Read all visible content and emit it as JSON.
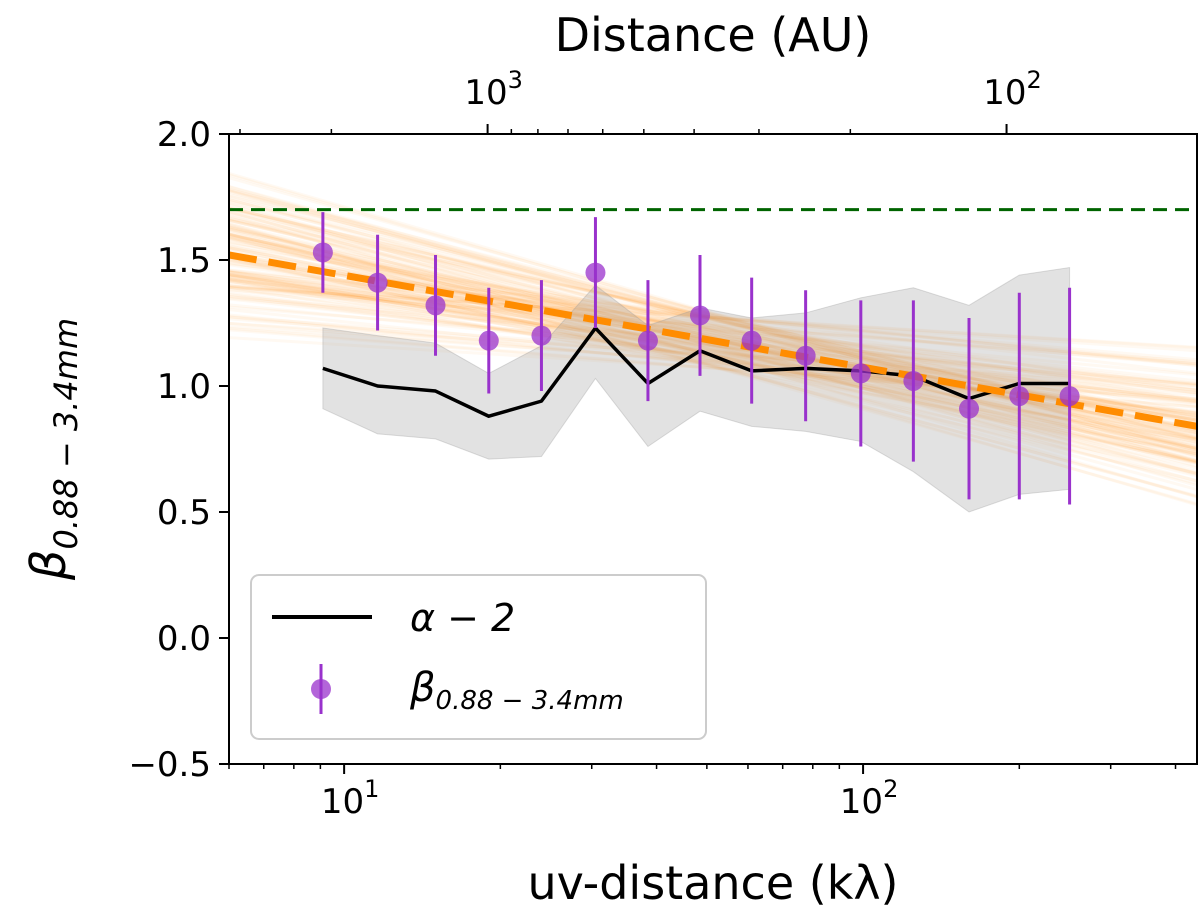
{
  "chart_data": {
    "type": "scatter",
    "xlabel": "uv-distance (kλ)",
    "ylabel_main": "β",
    "ylabel_sub": "0.88 − 3.4mm",
    "top_xlabel": "Distance (AU)",
    "xscale": "log",
    "xlim": [
      6,
      440
    ],
    "ylim": [
      -0.5,
      2.0
    ],
    "yticks": [
      -0.5,
      0.0,
      0.5,
      1.0,
      1.5,
      2.0
    ],
    "ytick_labels": [
      "−0.5",
      "0.0",
      "0.5",
      "1.0",
      "1.5",
      "2.0"
    ],
    "xtick_major": [
      {
        "value": 10,
        "base": "10",
        "exp": "1"
      },
      {
        "value": 100,
        "base": "10",
        "exp": "2"
      }
    ],
    "top_xtick_major": [
      {
        "value": 18.9,
        "base": "10",
        "exp": "3"
      },
      {
        "value": 189,
        "base": "10",
        "exp": "2"
      }
    ],
    "series": [
      {
        "name": "β_{0.88 − 3.4mm}",
        "kind": "errorbar",
        "color": "#9932CC",
        "x": [
          9.1,
          11.6,
          15.0,
          19.0,
          24.0,
          30.5,
          38.5,
          48.5,
          61.0,
          77.5,
          99.0,
          125.0,
          160.0,
          200.0,
          250.0
        ],
        "y": [
          1.53,
          1.41,
          1.32,
          1.18,
          1.2,
          1.45,
          1.18,
          1.28,
          1.18,
          1.12,
          1.05,
          1.02,
          0.91,
          0.96,
          0.96
        ],
        "yerr": [
          0.16,
          0.19,
          0.2,
          0.21,
          0.22,
          0.22,
          0.24,
          0.24,
          0.25,
          0.26,
          0.29,
          0.32,
          0.36,
          0.41,
          0.43
        ]
      },
      {
        "name": "α − 2",
        "kind": "line",
        "color": "#000000",
        "x": [
          9.1,
          11.6,
          15.0,
          19.0,
          24.0,
          30.5,
          38.5,
          48.5,
          61.0,
          77.5,
          99.0,
          125.0,
          160.0,
          200.0,
          250.0
        ],
        "y": [
          1.07,
          1.0,
          0.98,
          0.88,
          0.94,
          1.23,
          1.01,
          1.14,
          1.06,
          1.07,
          1.06,
          1.04,
          0.95,
          1.01,
          1.01
        ],
        "band_low": [
          0.91,
          0.81,
          0.79,
          0.71,
          0.72,
          1.03,
          0.76,
          0.9,
          0.84,
          0.82,
          0.78,
          0.66,
          0.5,
          0.57,
          0.59
        ],
        "band_high": [
          1.23,
          1.2,
          1.17,
          1.05,
          1.16,
          1.4,
          1.24,
          1.31,
          1.27,
          1.29,
          1.35,
          1.39,
          1.32,
          1.44,
          1.47
        ]
      },
      {
        "name": "fit",
        "kind": "dashed-line",
        "color": "#FF8C00",
        "x": [
          6,
          440
        ],
        "y": [
          1.52,
          0.84
        ]
      },
      {
        "name": "reference",
        "kind": "dashed-line",
        "color": "#006400",
        "y_const": 1.7
      }
    ],
    "legend": {
      "position": "lower-left",
      "entries": [
        {
          "label_main": "α − 2",
          "label_sub": ""
        },
        {
          "label_main": "β",
          "label_sub": "0.88 − 3.4mm"
        }
      ]
    }
  }
}
